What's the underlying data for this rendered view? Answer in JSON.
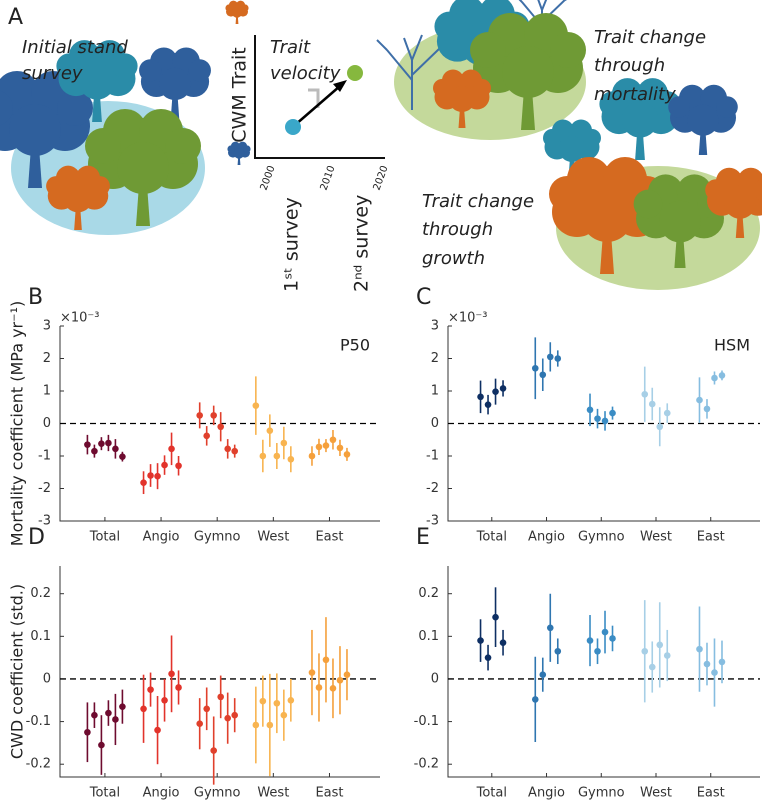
{
  "panel_a": {
    "label": "A",
    "initial": [
      "Initial stand",
      "survey"
    ],
    "cwm": "CWM Trait",
    "velocity": [
      "Trait",
      "velocity"
    ],
    "years": [
      "2000",
      "2010",
      "2020"
    ],
    "surveys": [
      "1ˢᵗ survey",
      "2ⁿᵈ survey"
    ],
    "mortality": [
      "Trait change",
      "through",
      "mortality"
    ],
    "growth": [
      "Trait change",
      "through",
      "growth"
    ]
  },
  "chart_data": [
    {
      "type": "errorbar",
      "panel_label": "B",
      "annotation": "P50",
      "exponent": "×10⁻³",
      "ylabel": "Mortality coefficient (MPa yr⁻¹)",
      "ylim": [
        -3,
        3
      ],
      "yticks": [
        -3,
        -2,
        -1,
        0,
        1,
        2,
        3
      ],
      "refline": 0,
      "series": [
        {
          "name": "Total",
          "color": "#6e0b2f",
          "values": [
            -0.65,
            -0.85,
            -0.62,
            -0.6,
            -0.78,
            -1.02
          ],
          "errors": [
            0.3,
            0.2,
            0.2,
            0.25,
            0.3,
            0.15
          ]
        },
        {
          "name": "Angio",
          "color": "#e2332b",
          "values": [
            -1.82,
            -1.6,
            -1.62,
            -1.28,
            -0.78,
            -1.3
          ],
          "errors": [
            0.35,
            0.35,
            0.4,
            0.3,
            0.5,
            0.3
          ]
        },
        {
          "name": "Gymno",
          "color": "#e0402c",
          "values": [
            0.25,
            -0.38,
            0.25,
            -0.1,
            -0.78,
            -0.85
          ],
          "errors": [
            0.4,
            0.3,
            0.3,
            0.45,
            0.3,
            0.2
          ]
        },
        {
          "name": "West",
          "color": "#f8b450",
          "values": [
            0.55,
            -1.0,
            -0.22,
            -1.0,
            -0.6,
            -1.1
          ],
          "errors": [
            0.9,
            0.5,
            0.5,
            0.4,
            0.5,
            0.4
          ]
        },
        {
          "name": "East",
          "color": "#f5a03c",
          "values": [
            -1.0,
            -0.72,
            -0.68,
            -0.5,
            -0.75,
            -0.95
          ],
          "errors": [
            0.3,
            0.25,
            0.2,
            0.3,
            0.25,
            0.2
          ]
        }
      ]
    },
    {
      "type": "errorbar",
      "panel_label": "C",
      "annotation": "HSM",
      "exponent": "×10⁻³",
      "ylim": [
        -3,
        3
      ],
      "yticks": [
        -3,
        -2,
        -1,
        0,
        1,
        2,
        3
      ],
      "refline": 0,
      "series": [
        {
          "name": "Total",
          "color": "#0e2f63",
          "values": [
            0.82,
            0.58,
            0.98,
            1.08
          ],
          "errors": [
            0.5,
            0.3,
            0.4,
            0.25
          ]
        },
        {
          "name": "Angio",
          "color": "#2f76b0",
          "values": [
            1.7,
            1.5,
            2.05,
            2.0
          ],
          "errors": [
            0.95,
            0.5,
            0.45,
            0.25
          ]
        },
        {
          "name": "Gymno",
          "color": "#3a8cc4",
          "values": [
            0.42,
            0.15,
            0.08,
            0.32
          ],
          "errors": [
            0.5,
            0.3,
            0.3,
            0.2
          ]
        },
        {
          "name": "West",
          "color": "#a7cfe6",
          "values": [
            0.9,
            0.6,
            -0.1,
            0.32
          ],
          "errors": [
            0.85,
            0.5,
            0.6,
            0.3
          ]
        },
        {
          "name": "East",
          "color": "#86bde0",
          "values": [
            0.72,
            0.45,
            1.4,
            1.48
          ],
          "errors": [
            0.7,
            0.3,
            0.2,
            0.15
          ]
        }
      ]
    },
    {
      "type": "errorbar",
      "panel_label": "D",
      "ylabel": "CWD coefficient (std.)",
      "ylim": [
        -0.23,
        0.265
      ],
      "yticks": [
        -0.2,
        -0.1,
        0,
        0.1,
        0.2
      ],
      "refline": 0,
      "series": [
        {
          "name": "Total",
          "color": "#6e0b2f",
          "values": [
            -0.125,
            -0.085,
            -0.155,
            -0.08,
            -0.095,
            -0.065
          ],
          "errors": [
            0.07,
            0.03,
            0.07,
            0.03,
            0.06,
            0.04
          ]
        },
        {
          "name": "Angio",
          "color": "#e2332b",
          "values": [
            -0.07,
            -0.025,
            -0.12,
            -0.05,
            0.012,
            -0.02
          ],
          "errors": [
            0.08,
            0.04,
            0.08,
            0.05,
            0.09,
            0.04
          ]
        },
        {
          "name": "Gymno",
          "color": "#e0402c",
          "values": [
            -0.105,
            -0.07,
            -0.168,
            -0.042,
            -0.092,
            -0.085
          ],
          "errors": [
            0.06,
            0.05,
            0.08,
            0.05,
            0.06,
            0.04
          ]
        },
        {
          "name": "West",
          "color": "#f8b450",
          "values": [
            -0.108,
            -0.052,
            -0.108,
            -0.057,
            -0.085,
            -0.05
          ],
          "errors": [
            0.09,
            0.06,
            0.12,
            0.07,
            0.06,
            0.05
          ]
        },
        {
          "name": "East",
          "color": "#f5a03c",
          "values": [
            0.015,
            -0.02,
            0.045,
            -0.022,
            -0.003,
            0.01
          ],
          "errors": [
            0.1,
            0.08,
            0.1,
            0.07,
            0.08,
            0.06
          ]
        }
      ]
    },
    {
      "type": "errorbar",
      "panel_label": "E",
      "ylim": [
        -0.23,
        0.265
      ],
      "yticks": [
        -0.2,
        -0.1,
        0,
        0.1,
        0.2
      ],
      "refline": 0,
      "series": [
        {
          "name": "Total",
          "color": "#0e2f63",
          "values": [
            0.09,
            0.05,
            0.145,
            0.085
          ],
          "errors": [
            0.05,
            0.03,
            0.07,
            0.03
          ]
        },
        {
          "name": "Angio",
          "color": "#2f76b0",
          "values": [
            -0.048,
            0.01,
            0.12,
            0.065
          ],
          "errors": [
            0.1,
            0.04,
            0.08,
            0.03
          ]
        },
        {
          "name": "Gymno",
          "color": "#3a8cc4",
          "values": [
            0.09,
            0.065,
            0.11,
            0.095
          ],
          "errors": [
            0.06,
            0.03,
            0.05,
            0.03
          ]
        },
        {
          "name": "West",
          "color": "#a7cfe6",
          "values": [
            0.065,
            0.028,
            0.08,
            0.055
          ],
          "errors": [
            0.12,
            0.06,
            0.1,
            0.06
          ]
        },
        {
          "name": "East",
          "color": "#86bde0",
          "values": [
            0.07,
            0.035,
            0.015,
            0.04
          ],
          "errors": [
            0.1,
            0.05,
            0.08,
            0.05
          ]
        }
      ]
    }
  ]
}
